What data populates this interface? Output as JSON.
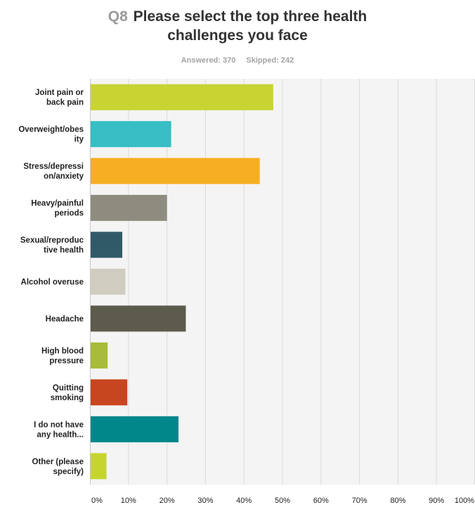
{
  "question": {
    "number": "Q8",
    "text": "Please select the top three health\nchallenges you face"
  },
  "stats": {
    "answered": "Answered: 370",
    "skipped": "Skipped: 242"
  },
  "chart_data": {
    "type": "bar",
    "orientation": "horizontal",
    "categories": [
      "Joint pain or back pain",
      "Overweight/obesity",
      "Stress/depression/anxiety",
      "Heavy/painful periods",
      "Sexual/reproductive health",
      "Alcohol overuse",
      "Headache",
      "High blood pressure",
      "Quitting smoking",
      "I do not have any health...",
      "Other (please specify)"
    ],
    "category_label_lines": [
      [
        "Joint pain or",
        "back pain"
      ],
      [
        "Overweight/obes",
        "ity"
      ],
      [
        "Stress/depressi",
        "on/anxiety"
      ],
      [
        "Heavy/painful",
        "periods"
      ],
      [
        "Sexual/reproduc",
        "tive health"
      ],
      [
        "Alcohol overuse"
      ],
      [
        "Headache"
      ],
      [
        "High blood",
        "pressure"
      ],
      [
        "Quitting",
        "smoking"
      ],
      [
        "I do not have",
        "any health..."
      ],
      [
        "Other (please",
        "specify)"
      ]
    ],
    "values": [
      47.6,
      21.1,
      44.1,
      20.0,
      8.4,
      9.2,
      24.9,
      4.6,
      9.7,
      23.0,
      4.3
    ],
    "colors": [
      "#c7d431",
      "#36bec4",
      "#f6ae22",
      "#8e8c7e",
      "#315a69",
      "#d0cdc0",
      "#5d5b4b",
      "#a9bb3a",
      "#c8461f",
      "#00878a",
      "#c5d52e"
    ],
    "xlim": [
      0,
      100
    ],
    "x_ticks": [
      0,
      10,
      20,
      30,
      40,
      50,
      60,
      70,
      80,
      90,
      100
    ],
    "x_tick_labels": [
      "0%",
      "10%",
      "20%",
      "30%",
      "40%",
      "50%",
      "60%",
      "70%",
      "80%",
      "90%",
      "100%"
    ],
    "grid": true,
    "legend": "none",
    "title": "Please select the top three health challenges you face",
    "xlabel": "",
    "ylabel": ""
  }
}
